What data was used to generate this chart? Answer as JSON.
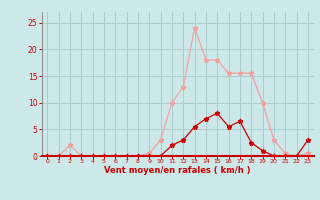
{
  "x": [
    0,
    1,
    2,
    3,
    4,
    5,
    6,
    7,
    8,
    9,
    10,
    11,
    12,
    13,
    14,
    15,
    16,
    17,
    18,
    19,
    20,
    21,
    22,
    23
  ],
  "y_light": [
    0,
    0,
    2,
    0,
    0,
    0,
    0,
    0,
    0,
    0.5,
    3,
    10,
    13,
    24,
    18,
    18,
    15.5,
    15.5,
    15.5,
    10,
    3,
    0.5,
    0,
    0.5
  ],
  "y_dark": [
    0,
    0,
    0,
    0,
    0,
    0,
    0,
    0,
    0,
    0,
    0,
    2,
    3,
    5.5,
    7,
    8,
    5.5,
    6.5,
    2.5,
    1,
    0,
    0,
    0,
    3
  ],
  "light_color": "#f4a0a0",
  "dark_color": "#cc0000",
  "background_color": "#cce8e8",
  "grid_color": "#aacccc",
  "xlabel": "Vent moyen/en rafales ( km/h )",
  "xlabel_color": "#cc0000",
  "tick_color": "#cc0000",
  "ylim": [
    0,
    27
  ],
  "xlim": [
    -0.5,
    23.5
  ],
  "yticks": [
    0,
    5,
    10,
    15,
    20,
    25
  ],
  "xticks": [
    0,
    1,
    2,
    3,
    4,
    5,
    6,
    7,
    8,
    9,
    10,
    11,
    12,
    13,
    14,
    15,
    16,
    17,
    18,
    19,
    20,
    21,
    22,
    23
  ]
}
